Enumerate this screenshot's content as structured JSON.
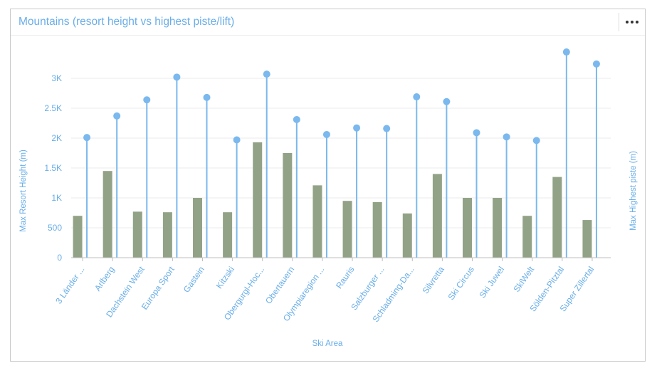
{
  "card": {
    "title": "Mountains (resort height vs highest piste/lift)",
    "menu_icon": "more-horizontal-icon"
  },
  "colors": {
    "bar": "#92a287",
    "lollipop": "#7ab8ee",
    "text": "#6aaee8",
    "grid": "#ebebeb"
  },
  "chart_data": {
    "type": "bar",
    "categories": [
      "3 Länder ...",
      "Arlberg",
      "Dachstein West",
      "Europa Sport",
      "Gastein",
      "Kitzski",
      "Obergurgl-Hoc...",
      "Obertauern",
      "Olympiaregion ...",
      "Rauris",
      "Salzburger ...",
      "Schladming-Da...",
      "Silvretta",
      "Ski Circus",
      "Ski Juwel",
      "SkiWelt",
      "Sölden-Pitztal",
      "Super Zillertal"
    ],
    "series": [
      {
        "type": "bar",
        "axis": "left",
        "values": [
          700,
          1450,
          770,
          760,
          1000,
          760,
          1930,
          1750,
          1210,
          950,
          930,
          740,
          1400,
          1000,
          1000,
          700,
          1350,
          630
        ]
      },
      {
        "type": "lollipop",
        "axis": "right",
        "values": [
          2010,
          2370,
          2640,
          3020,
          2680,
          1970,
          3070,
          2310,
          2060,
          2170,
          2160,
          2690,
          2610,
          2090,
          2020,
          1960,
          3440,
          3240
        ]
      }
    ],
    "xlabel": "Ski Area",
    "ylabel": "Max Resort Height (m)",
    "y2label": "Max Highest piste (m)",
    "ylim": [
      0,
      3400
    ],
    "yticks": [
      0,
      500,
      1000,
      1500,
      2000,
      2500,
      3000
    ],
    "yticklabels": [
      "0",
      "500",
      "1K",
      "1.5K",
      "2K",
      "2.5K",
      "3K"
    ],
    "grid": true
  }
}
